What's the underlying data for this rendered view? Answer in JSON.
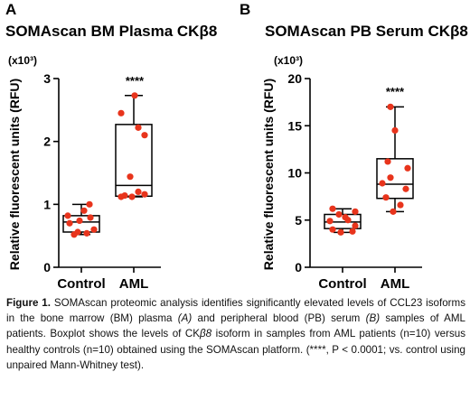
{
  "chart_data": [
    {
      "type": "box",
      "panel_label": "A",
      "title": "SOMAscan BM Plasma CKβ8",
      "ylabel": "Relative fluorescent units (RFU)",
      "y_multiplier_label": "(x10³)",
      "ylim": [
        0,
        3
      ],
      "yticks": [
        0,
        1,
        2,
        3
      ],
      "categories": [
        "Control",
        "AML"
      ],
      "boxes": [
        {
          "name": "Control",
          "min": 0.52,
          "q1": 0.56,
          "median": 0.72,
          "q3": 0.82,
          "max": 1.0,
          "points": [
            0.52,
            0.54,
            0.56,
            0.6,
            0.7,
            0.74,
            0.79,
            0.82,
            0.9,
            1.0
          ]
        },
        {
          "name": "AML",
          "min": 1.12,
          "q1": 1.13,
          "median": 1.3,
          "q3": 2.27,
          "max": 2.73,
          "points": [
            1.12,
            1.12,
            1.14,
            1.16,
            1.2,
            1.44,
            2.1,
            2.22,
            2.45,
            2.73
          ]
        }
      ],
      "significance": "****",
      "significance_over": "AML"
    },
    {
      "type": "box",
      "panel_label": "B",
      "title": "SOMAscan PB Serum CKβ8",
      "ylabel": "Relative fluorescent units (RFU)",
      "y_multiplier_label": "(x10³)",
      "ylim": [
        0,
        20
      ],
      "yticks": [
        0,
        5,
        10,
        15,
        20
      ],
      "categories": [
        "Control",
        "AML"
      ],
      "boxes": [
        {
          "name": "Control",
          "min": 3.7,
          "q1": 4.1,
          "median": 4.8,
          "q3": 5.6,
          "max": 6.2,
          "points": [
            3.7,
            3.8,
            4.0,
            4.4,
            4.9,
            5.0,
            5.3,
            5.6,
            5.9,
            6.2
          ]
        },
        {
          "name": "AML",
          "min": 5.9,
          "q1": 7.3,
          "median": 8.8,
          "q3": 11.5,
          "max": 17.0,
          "points": [
            5.9,
            6.6,
            7.4,
            8.3,
            8.9,
            9.5,
            10.5,
            11.2,
            14.5,
            17.0
          ]
        }
      ],
      "significance": "****",
      "significance_over": "AML"
    }
  ],
  "caption": {
    "label": "Figure 1.",
    "p1": " SOMAscan proteomic analysis identifies significantly elevated levels of CCL23 isoforms in the bone marrow (BM) plasma ",
    "a_ref": "(A)",
    "p2": " and peripheral blood (PB) serum ",
    "b_ref": "(B)",
    "p3": " samples of AML patients. Boxplot shows the levels of CK",
    "beta_italic": "β8",
    "p4": " isoform in samples from AML patients (n=10) versus healthy controls (n=10) obtained using the SOMAscan platform. (****, P < 0.0001; vs. control using unpaired Mann-Whitney test)."
  },
  "colors": {
    "points": "#e8341c",
    "box": "#000000",
    "axis": "#000000"
  }
}
